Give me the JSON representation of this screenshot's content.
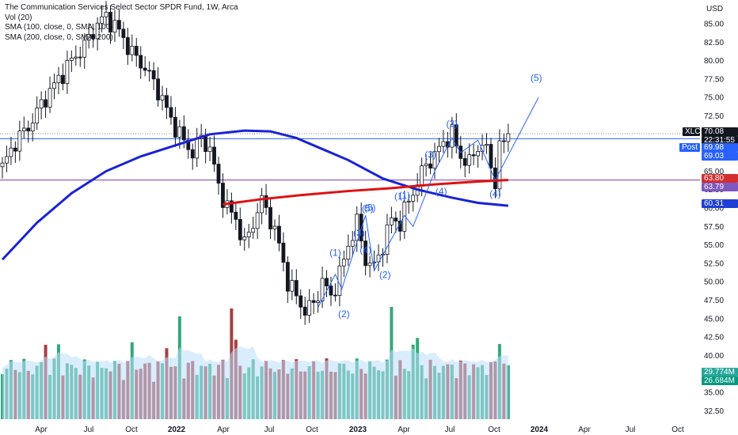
{
  "legend": {
    "title": "The Communication Services Select Sector SPDR Fund, 1W, Arca",
    "vol": "Vol (20)",
    "sma100": "SMA (100, close, 0, SMA, 100)",
    "sma200": "SMA (200, close, 0, SMA, 200)"
  },
  "chart_data": {
    "type": "candlestick",
    "currency": "USD",
    "y_ticks": [
      "85.00",
      "82.50",
      "80.00",
      "77.50",
      "75.00",
      "72.50",
      "70.00",
      "67.50",
      "65.00",
      "62.50",
      "60.00",
      "57.50",
      "55.00",
      "52.50",
      "50.00",
      "47.50",
      "45.00",
      "42.50",
      "40.00",
      "37.50",
      "35.00",
      "32.50"
    ],
    "y_tick_values": [
      85,
      82.5,
      80,
      77.5,
      75,
      72.5,
      70,
      67.5,
      65,
      62.5,
      60,
      57.5,
      55,
      52.5,
      50,
      47.5,
      45,
      42.5,
      40,
      37.5,
      35,
      32.5
    ],
    "x_ticks": [
      "Apr",
      "Jul",
      "Oct",
      "2022",
      "Apr",
      "Jul",
      "Oct",
      "2023",
      "Apr",
      "Jul",
      "Oct",
      "2024",
      "Apr",
      "Jul",
      "Oct"
    ],
    "price_path": [
      [
        0,
        65.5
      ],
      [
        3,
        69
      ],
      [
        6,
        71
      ],
      [
        10,
        75
      ],
      [
        13,
        77.5
      ],
      [
        16,
        80
      ],
      [
        19,
        82
      ],
      [
        22,
        85
      ],
      [
        24,
        86
      ],
      [
        27,
        84
      ],
      [
        30,
        81
      ],
      [
        33,
        79
      ],
      [
        36,
        76
      ],
      [
        39,
        72
      ],
      [
        42,
        69
      ],
      [
        44,
        67.5
      ],
      [
        46,
        69.5
      ],
      [
        48,
        68
      ],
      [
        50,
        63
      ],
      [
        52,
        60
      ],
      [
        54,
        58.5
      ],
      [
        56,
        55
      ],
      [
        58,
        58
      ],
      [
        60,
        61
      ],
      [
        62,
        58.5
      ],
      [
        64,
        55
      ],
      [
        66,
        50
      ],
      [
        68,
        48
      ],
      [
        70,
        46
      ],
      [
        72,
        47
      ],
      [
        74,
        50
      ],
      [
        76,
        48
      ],
      [
        78,
        51
      ],
      [
        80,
        55
      ],
      [
        82,
        58
      ],
      [
        84,
        53
      ],
      [
        86,
        52
      ],
      [
        88,
        55
      ],
      [
        90,
        58.5
      ],
      [
        92,
        58
      ],
      [
        94,
        61
      ],
      [
        96,
        63.5
      ],
      [
        98,
        66
      ],
      [
        100,
        67
      ],
      [
        102,
        69
      ],
      [
        104,
        70
      ],
      [
        106,
        67
      ],
      [
        108,
        66
      ],
      [
        110,
        68.5
      ],
      [
        112,
        68
      ],
      [
        113,
        65.5
      ],
      [
        114,
        63.8
      ],
      [
        115,
        68
      ],
      [
        116,
        69
      ],
      [
        117,
        70.08
      ]
    ],
    "sma200": [
      [
        0,
        53
      ],
      [
        8,
        58
      ],
      [
        16,
        62
      ],
      [
        24,
        65
      ],
      [
        32,
        67
      ],
      [
        40,
        68.5
      ],
      [
        48,
        70
      ],
      [
        56,
        70.5
      ],
      [
        62,
        70.4
      ],
      [
        68,
        69.5
      ],
      [
        74,
        68
      ],
      [
        80,
        66.5
      ],
      [
        88,
        64
      ],
      [
        96,
        62.5
      ],
      [
        104,
        61.4
      ],
      [
        110,
        60.7
      ],
      [
        117,
        60.31
      ]
    ],
    "sma100": [
      [
        51,
        60.5
      ],
      [
        60,
        61.2
      ],
      [
        70,
        61.8
      ],
      [
        80,
        62.3
      ],
      [
        90,
        62.7
      ],
      [
        100,
        63.2
      ],
      [
        110,
        63.6
      ],
      [
        117,
        63.8
      ]
    ],
    "horizontal_levels": [
      {
        "value": 69.4,
        "color": "#2962ff",
        "style": "solid"
      },
      {
        "value": 63.8,
        "color": "#7b3fa0",
        "style": "solid"
      },
      {
        "value": 70.08,
        "color": "#888888",
        "style": "dotted"
      }
    ],
    "elliott_polyline": [
      [
        73,
        46.5
      ],
      [
        77,
        51
      ],
      [
        78.5,
        49
      ],
      [
        84,
        59
      ],
      [
        86,
        51.5
      ],
      [
        93,
        59
      ],
      [
        95,
        57.5
      ],
      [
        100,
        65
      ],
      [
        104,
        69.5
      ],
      [
        106,
        67.5
      ],
      [
        110,
        69.2
      ],
      [
        114,
        63.8
      ],
      [
        124,
        75
      ]
    ],
    "wave_labels": [
      {
        "text": "(1)",
        "x": 77,
        "y": 53.5
      },
      {
        "text": "(2)",
        "x": 79,
        "y": 45.2
      },
      {
        "text": "(3)",
        "x": 82.5,
        "y": 56.2
      },
      {
        "text": "(4)",
        "x": 84,
        "y": 53.9
      },
      {
        "text": "(5)",
        "x": 84.5,
        "y": 59.5
      },
      {
        "text": "(1)",
        "x": 92,
        "y": 61.2
      },
      {
        "text": "(2)",
        "x": 88.5,
        "y": 50.5
      },
      {
        "text": "(3)",
        "x": 99,
        "y": 66.8
      },
      {
        "text": "(4)",
        "x": 101.5,
        "y": 61.8
      },
      {
        "text": "(3)",
        "x": 104,
        "y": 71
      },
      {
        "text": "(4)",
        "x": 114,
        "y": 61.5
      },
      {
        "text": "(5)",
        "x": 123.5,
        "y": 77.2
      },
      {
        "text": "(5)",
        "x": 85,
        "y": 59.6
      },
      {
        "text": "(1)",
        "x": 93,
        "y": 61.3
      }
    ],
    "price_badges": [
      {
        "label": "XLC",
        "value": "70.08",
        "sub": "22:31:55",
        "color": "#131722"
      },
      {
        "label": "Post",
        "value": "69.98",
        "sub": "69.03",
        "color": "#2962ff"
      },
      {
        "value": "63.80",
        "color": "#d32f2f"
      },
      {
        "value": "63.79",
        "color": "#7e57c2"
      },
      {
        "value": "60.31",
        "color": "#1e3fd6"
      },
      {
        "value": "29.774M",
        "color": "#26a69a"
      },
      {
        "value": "26.684M",
        "color": "#089981"
      }
    ]
  }
}
